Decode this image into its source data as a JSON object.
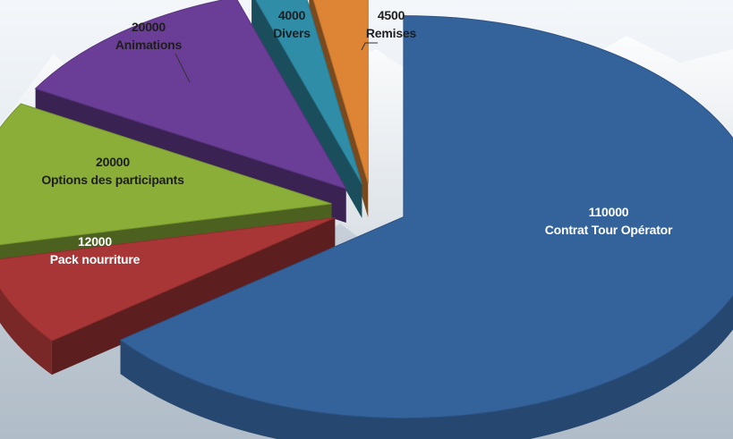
{
  "chart_data": {
    "type": "pie",
    "title": "",
    "style": "3d-exploded",
    "slices": [
      {
        "label": "Contrat Tour Opérator",
        "value": 110000,
        "value_text": "110000",
        "color": "#34629b",
        "label_color": "#ffffff"
      },
      {
        "label": "Pack nourriture",
        "value": 12000,
        "value_text": "12000",
        "color": "#a83636",
        "label_color": "#ffffff"
      },
      {
        "label": "Options des participants",
        "value": 20000,
        "value_text": "20000",
        "color": "#8aae38",
        "label_color": "#1e1e1e"
      },
      {
        "label": "Animations",
        "value": 20000,
        "value_text": "20000",
        "color": "#6a3d96",
        "label_color": "#1e1e1e"
      },
      {
        "label": "Divers",
        "value": 4000,
        "value_text": "4000",
        "color": "#2f8da8",
        "label_color": "#1e1e1e"
      },
      {
        "label": "Remises",
        "value": 4500,
        "value_text": "4500",
        "color": "#dd8534",
        "label_color": "#1e1e1e"
      }
    ]
  }
}
